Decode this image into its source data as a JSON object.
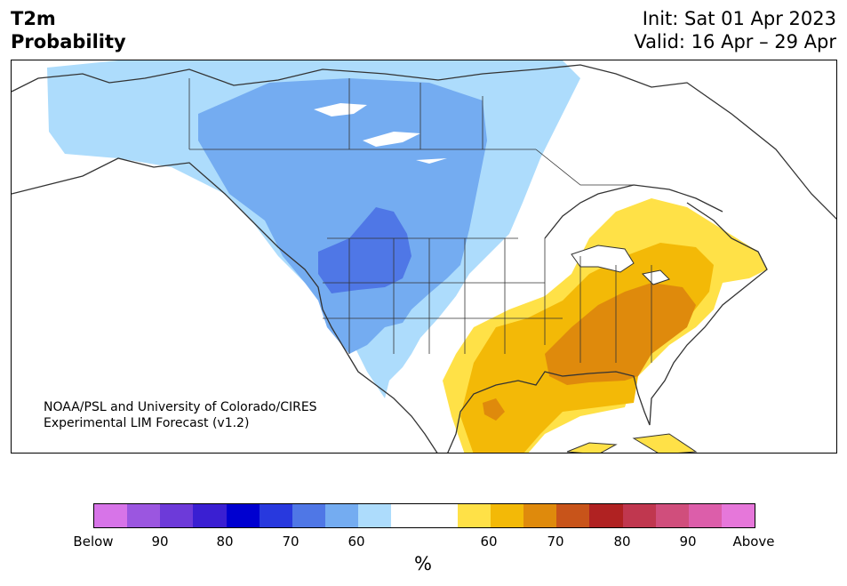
{
  "header": {
    "title_line1": "T2m",
    "title_line2": "Probability",
    "init": "Init: Sat 01 Apr 2023",
    "valid": "Valid: 16 Apr – 29 Apr"
  },
  "credit": {
    "line1": "NOAA/PSL and University of Colorado/CIRES",
    "line2": "Experimental LIM Forecast (v1.2)"
  },
  "colorbar": {
    "colors": [
      "#d774e8",
      "#9b56e0",
      "#6d3ad9",
      "#3a1fd2",
      "#0000d0",
      "#2839de",
      "#4f77e6",
      "#74acf1",
      "#addcfc",
      "#ffffff",
      "#ffffff",
      "#ffe147",
      "#f3b907",
      "#df8a0c",
      "#c8541a",
      "#b02222",
      "#c0374f",
      "#d04e7c",
      "#dc5eaa",
      "#e677da"
    ],
    "tick_labels": [
      "Below",
      "90",
      "80",
      "70",
      "60",
      "60",
      "70",
      "80",
      "90",
      "Above"
    ],
    "unit": "%"
  },
  "map": {
    "region": "North America",
    "variable": "2m temperature probability",
    "colors": {
      "light_blue": "#addcfc",
      "mid_blue": "#74acf1",
      "dark_blue": "#4f77e6",
      "yellow": "#ffe147",
      "gold": "#f3b907",
      "orange": "#df8a0c",
      "land_outline": "#333333"
    }
  }
}
